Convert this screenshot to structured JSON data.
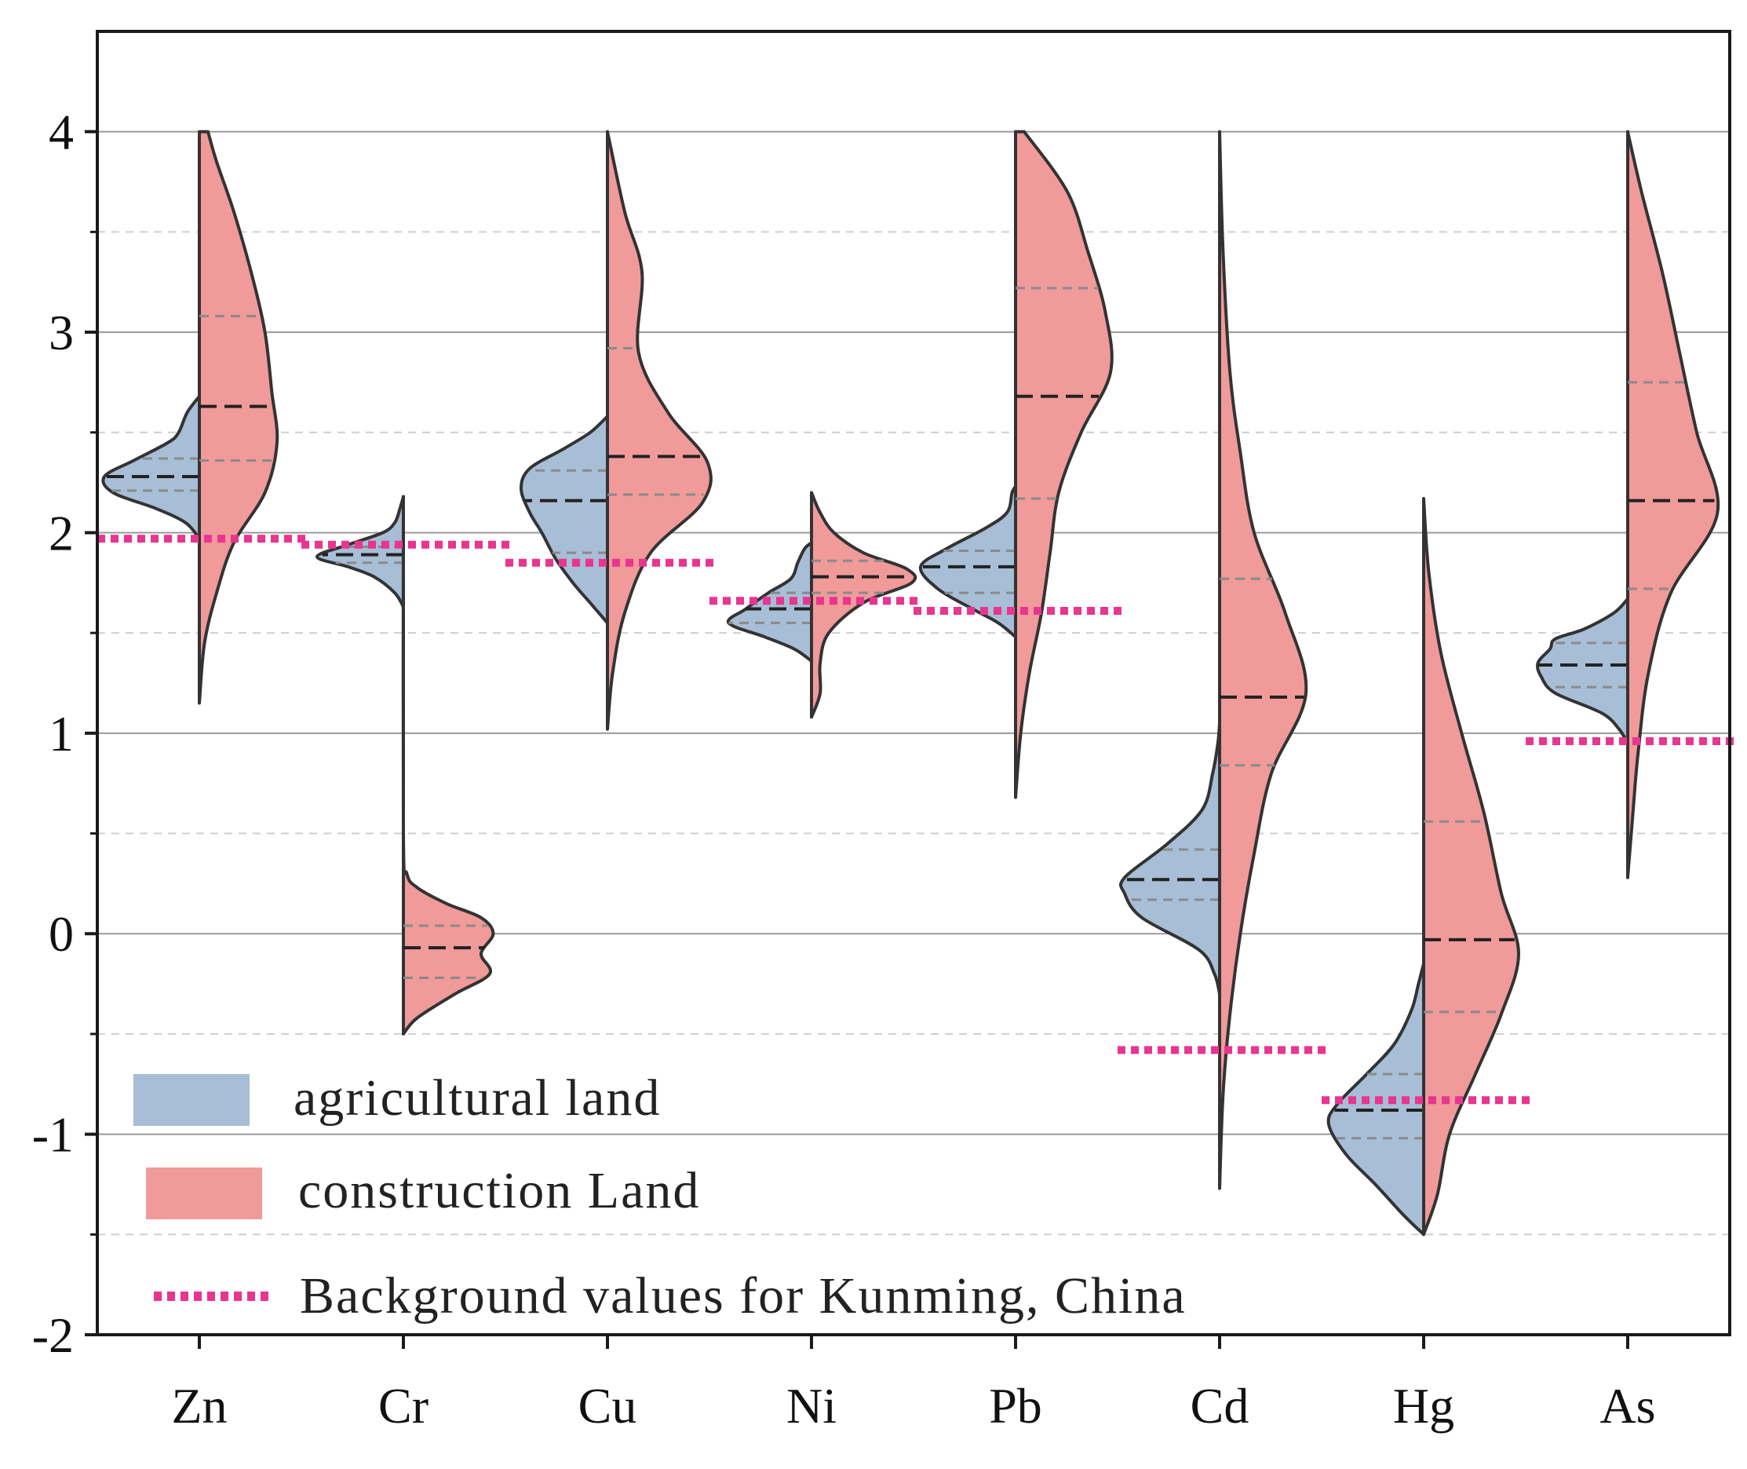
{
  "chart_data": {
    "type": "split-violin",
    "title": "",
    "xlabel": "",
    "ylabel": "",
    "ylim": [
      -2,
      4.5
    ],
    "yticks": [
      -2,
      -1,
      0,
      1,
      2,
      3,
      4
    ],
    "ytick_labels": [
      "-2",
      "-1",
      "0",
      "1",
      "2",
      "3",
      "4"
    ],
    "minor_grid": [
      -1.5,
      -0.5,
      0.5,
      1.5,
      2.5,
      3.5
    ],
    "categories": [
      "Zn",
      "Cr",
      "Cu",
      "Ni",
      "Pb",
      "Cd",
      "Hg",
      "As"
    ],
    "colors": {
      "agricultural": "#a7bed6",
      "construction": "#f09a9a",
      "background_line": "#e8358f",
      "outline": "#333333"
    },
    "legend": [
      {
        "key": "agricultural",
        "label": "agricultural land"
      },
      {
        "key": "construction",
        "label": "construction Land"
      },
      {
        "key": "background",
        "label": "Background values for Kunming, China"
      }
    ],
    "series": [
      {
        "name": "agricultural land",
        "side": "left",
        "violins": [
          {
            "category": "Zn",
            "min": 1.97,
            "max": 2.68,
            "median": 2.28,
            "q1": 2.21,
            "q3": 2.37,
            "profile": [
              [
                1.97,
                0
              ],
              [
                2.05,
                0.08
              ],
              [
                2.12,
                0.25
              ],
              [
                2.2,
                0.5
              ],
              [
                2.28,
                0.55
              ],
              [
                2.36,
                0.38
              ],
              [
                2.45,
                0.18
              ],
              [
                2.5,
                0.12
              ],
              [
                2.6,
                0.07
              ],
              [
                2.68,
                0
              ]
            ]
          },
          {
            "category": "Cr",
            "min": 1.63,
            "max": 2.18,
            "median": 1.89,
            "q1": 1.85,
            "q3": 1.93,
            "profile": [
              [
                1.63,
                0
              ],
              [
                1.7,
                0.05
              ],
              [
                1.78,
                0.17
              ],
              [
                1.83,
                0.32
              ],
              [
                1.88,
                0.5
              ],
              [
                1.94,
                0.32
              ],
              [
                2.0,
                0.12
              ],
              [
                2.05,
                0.05
              ],
              [
                2.12,
                0.02
              ],
              [
                2.18,
                0
              ]
            ]
          },
          {
            "category": "Cu",
            "min": 1.55,
            "max": 2.58,
            "median": 2.16,
            "q1": 1.9,
            "q3": 2.31,
            "profile": [
              [
                1.55,
                0
              ],
              [
                1.65,
                0.1
              ],
              [
                1.75,
                0.2
              ],
              [
                1.87,
                0.3
              ],
              [
                2.0,
                0.38
              ],
              [
                2.1,
                0.45
              ],
              [
                2.22,
                0.5
              ],
              [
                2.32,
                0.45
              ],
              [
                2.42,
                0.25
              ],
              [
                2.5,
                0.1
              ],
              [
                2.58,
                0
              ]
            ]
          },
          {
            "category": "Ni",
            "min": 1.36,
            "max": 1.95,
            "median": 1.62,
            "q1": 1.55,
            "q3": 1.7,
            "profile": [
              [
                1.36,
                0
              ],
              [
                1.42,
                0.1
              ],
              [
                1.48,
                0.27
              ],
              [
                1.55,
                0.48
              ],
              [
                1.62,
                0.38
              ],
              [
                1.7,
                0.25
              ],
              [
                1.77,
                0.12
              ],
              [
                1.85,
                0.08
              ],
              [
                1.92,
                0.04
              ],
              [
                1.95,
                0
              ]
            ]
          },
          {
            "category": "Pb",
            "min": 1.48,
            "max": 2.23,
            "median": 1.83,
            "q1": 1.7,
            "q3": 1.91,
            "profile": [
              [
                1.48,
                0
              ],
              [
                1.55,
                0.1
              ],
              [
                1.62,
                0.25
              ],
              [
                1.72,
                0.45
              ],
              [
                1.83,
                0.55
              ],
              [
                1.92,
                0.4
              ],
              [
                2.02,
                0.18
              ],
              [
                2.1,
                0.05
              ],
              [
                2.2,
                0.02
              ],
              [
                2.23,
                0
              ]
            ]
          },
          {
            "category": "Cd",
            "min": -0.3,
            "max": 1.05,
            "median": 0.27,
            "q1": 0.17,
            "q3": 0.42,
            "profile": [
              [
                -0.3,
                0
              ],
              [
                -0.2,
                0.03
              ],
              [
                -0.08,
                0.12
              ],
              [
                0.08,
                0.45
              ],
              [
                0.2,
                0.55
              ],
              [
                0.28,
                0.55
              ],
              [
                0.45,
                0.3
              ],
              [
                0.62,
                0.1
              ],
              [
                0.8,
                0.04
              ],
              [
                0.95,
                0.01
              ],
              [
                1.05,
                0
              ]
            ]
          },
          {
            "category": "Hg",
            "min": -1.5,
            "max": -0.15,
            "median": -0.88,
            "q1": -1.02,
            "q3": -0.7,
            "profile": [
              [
                -1.5,
                0
              ],
              [
                -1.4,
                0.12
              ],
              [
                -1.25,
                0.28
              ],
              [
                -1.1,
                0.45
              ],
              [
                -0.95,
                0.55
              ],
              [
                -0.85,
                0.5
              ],
              [
                -0.7,
                0.33
              ],
              [
                -0.55,
                0.17
              ],
              [
                -0.38,
                0.07
              ],
              [
                -0.25,
                0.03
              ],
              [
                -0.15,
                0
              ]
            ]
          },
          {
            "category": "As",
            "min": 0.95,
            "max": 1.67,
            "median": 1.34,
            "q1": 1.23,
            "q3": 1.45,
            "profile": [
              [
                0.95,
                0
              ],
              [
                1.02,
                0.05
              ],
              [
                1.1,
                0.15
              ],
              [
                1.2,
                0.42
              ],
              [
                1.28,
                0.5
              ],
              [
                1.35,
                0.52
              ],
              [
                1.42,
                0.45
              ],
              [
                1.47,
                0.42
              ],
              [
                1.52,
                0.25
              ],
              [
                1.6,
                0.08
              ],
              [
                1.67,
                0
              ]
            ]
          }
        ]
      },
      {
        "name": "construction Land",
        "side": "right",
        "violins": [
          {
            "category": "Zn",
            "min": 1.15,
            "max": 4.0,
            "median": 2.63,
            "q1": 2.36,
            "q3": 3.08,
            "profile": [
              [
                1.15,
                0
              ],
              [
                1.45,
                0.03
              ],
              [
                1.7,
                0.1
              ],
              [
                1.95,
                0.2
              ],
              [
                2.2,
                0.38
              ],
              [
                2.45,
                0.45
              ],
              [
                2.7,
                0.42
              ],
              [
                3.0,
                0.38
              ],
              [
                3.3,
                0.3
              ],
              [
                3.6,
                0.2
              ],
              [
                3.85,
                0.1
              ],
              [
                4.0,
                0.05
              ]
            ]
          },
          {
            "category": "Cr",
            "min": -0.5,
            "max": 2.18,
            "median": -0.07,
            "q1": -0.22,
            "q3": 0.04,
            "profile": [
              [
                -0.5,
                0
              ],
              [
                -0.42,
                0.08
              ],
              [
                -0.3,
                0.3
              ],
              [
                -0.2,
                0.5
              ],
              [
                -0.1,
                0.45
              ],
              [
                0.0,
                0.52
              ],
              [
                0.08,
                0.45
              ],
              [
                0.15,
                0.25
              ],
              [
                0.23,
                0.08
              ],
              [
                0.3,
                0.02
              ],
              [
                0.5,
                0
              ],
              [
                2.18,
                0
              ]
            ]
          },
          {
            "category": "Cu",
            "min": 1.02,
            "max": 4.0,
            "median": 2.38,
            "q1": 2.19,
            "q3": 2.92,
            "profile": [
              [
                1.02,
                0
              ],
              [
                1.3,
                0.03
              ],
              [
                1.6,
                0.1
              ],
              [
                1.9,
                0.25
              ],
              [
                2.15,
                0.55
              ],
              [
                2.35,
                0.58
              ],
              [
                2.6,
                0.35
              ],
              [
                2.9,
                0.18
              ],
              [
                3.3,
                0.2
              ],
              [
                3.6,
                0.1
              ],
              [
                4.0,
                0
              ]
            ]
          },
          {
            "category": "Ni",
            "min": 1.08,
            "max": 2.2,
            "median": 1.78,
            "q1": 1.7,
            "q3": 1.86,
            "profile": [
              [
                1.08,
                0
              ],
              [
                1.2,
                0.05
              ],
              [
                1.35,
                0.05
              ],
              [
                1.5,
                0.1
              ],
              [
                1.65,
                0.3
              ],
              [
                1.75,
                0.58
              ],
              [
                1.82,
                0.55
              ],
              [
                1.9,
                0.3
              ],
              [
                2.0,
                0.13
              ],
              [
                2.1,
                0.05
              ],
              [
                2.2,
                0
              ]
            ]
          },
          {
            "category": "Pb",
            "min": 0.68,
            "max": 4.0,
            "median": 2.68,
            "q1": 2.17,
            "q3": 3.22,
            "profile": [
              [
                0.68,
                0
              ],
              [
                1.0,
                0.03
              ],
              [
                1.3,
                0.08
              ],
              [
                1.6,
                0.15
              ],
              [
                1.9,
                0.2
              ],
              [
                2.2,
                0.25
              ],
              [
                2.5,
                0.38
              ],
              [
                2.8,
                0.55
              ],
              [
                3.1,
                0.52
              ],
              [
                3.4,
                0.42
              ],
              [
                3.7,
                0.3
              ],
              [
                4.0,
                0.05
              ]
            ]
          },
          {
            "category": "Cd",
            "min": -1.27,
            "max": 4.0,
            "median": 1.18,
            "q1": 0.84,
            "q3": 1.77,
            "profile": [
              [
                -1.27,
                0
              ],
              [
                -0.8,
                0.02
              ],
              [
                -0.4,
                0.06
              ],
              [
                0.0,
                0.12
              ],
              [
                0.4,
                0.2
              ],
              [
                0.8,
                0.3
              ],
              [
                1.2,
                0.5
              ],
              [
                1.6,
                0.38
              ],
              [
                2.0,
                0.2
              ],
              [
                2.4,
                0.12
              ],
              [
                2.8,
                0.06
              ],
              [
                3.4,
                0.02
              ],
              [
                4.0,
                0
              ]
            ]
          },
          {
            "category": "Hg",
            "min": -1.5,
            "max": 2.17,
            "median": -0.03,
            "q1": -0.39,
            "q3": 0.56,
            "profile": [
              [
                -1.5,
                0
              ],
              [
                -1.3,
                0.08
              ],
              [
                -1.0,
                0.15
              ],
              [
                -0.7,
                0.3
              ],
              [
                -0.4,
                0.45
              ],
              [
                -0.1,
                0.55
              ],
              [
                0.2,
                0.45
              ],
              [
                0.6,
                0.35
              ],
              [
                1.0,
                0.22
              ],
              [
                1.4,
                0.1
              ],
              [
                1.8,
                0.03
              ],
              [
                2.17,
                0
              ]
            ]
          },
          {
            "category": "As",
            "min": 0.28,
            "max": 4.0,
            "median": 2.16,
            "q1": 1.72,
            "q3": 2.75,
            "profile": [
              [
                0.28,
                0
              ],
              [
                0.6,
                0.03
              ],
              [
                0.9,
                0.06
              ],
              [
                1.3,
                0.12
              ],
              [
                1.7,
                0.25
              ],
              [
                2.1,
                0.52
              ],
              [
                2.5,
                0.4
              ],
              [
                2.9,
                0.3
              ],
              [
                3.3,
                0.2
              ],
              [
                3.7,
                0.08
              ],
              [
                4.0,
                0
              ]
            ]
          }
        ]
      }
    ],
    "background_values": [
      {
        "category": "Zn",
        "value": 1.97
      },
      {
        "category": "Cr",
        "value": 1.94
      },
      {
        "category": "Cu",
        "value": 1.85
      },
      {
        "category": "Ni",
        "value": 1.66
      },
      {
        "category": "Pb",
        "value": 1.61
      },
      {
        "category": "Cd",
        "value": -0.58
      },
      {
        "category": "Hg",
        "value": -0.83
      },
      {
        "category": "As",
        "value": 0.96
      }
    ]
  }
}
